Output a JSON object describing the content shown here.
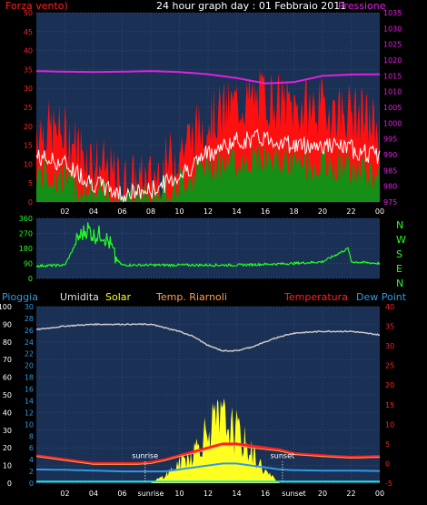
{
  "header": {
    "title": "24 hour graph day : 01 Febbraio 2011",
    "left_label": "Forza vento)",
    "right_label": "Pressione"
  },
  "middle": {
    "compass": [
      "N",
      "W",
      "S",
      "E",
      "N"
    ]
  },
  "lower_legend": {
    "rain": "Pioggia",
    "humidity": "Umidita",
    "solar": "Solar",
    "temp_riarnoli": "Temp. Riarnoli",
    "temperature": "Temperatura",
    "dew_point": "Dew Point"
  },
  "x_axis_ticks": [
    "02",
    "04",
    "06",
    "08",
    "10",
    "12",
    "14",
    "16",
    "18",
    "20",
    "22",
    "00"
  ],
  "x_axis_ticks_bottom": [
    "02",
    "04",
    "06",
    "sunrise",
    "10",
    "12",
    "14",
    "16",
    "sunset",
    "20",
    "22",
    "00"
  ],
  "annotations": {
    "sunrise": "sunrise",
    "sunset": "sunset"
  },
  "colors": {
    "background": "#000000",
    "plot": "#1a3055",
    "wind_gust": "#ff1010",
    "wind_avg": "#ffffff",
    "wind_low": "#158f15",
    "pressure": "#e020e0",
    "direction": "#20ff20",
    "humidity": "#c8c8c8",
    "solar": "#ffff20",
    "temperature": "#ff2020",
    "temp_riarnoli": "#ff9e50",
    "dew_point": "#2f9ae0"
  },
  "chart_data": [
    {
      "type": "line",
      "title": "24 hour graph day : 01 Febbraio 2011",
      "x": [
        0,
        2,
        4,
        6,
        8,
        10,
        12,
        14,
        16,
        18,
        20,
        22,
        24
      ],
      "xtick_labels": [
        "02",
        "04",
        "06",
        "08",
        "10",
        "12",
        "14",
        "16",
        "18",
        "20",
        "22",
        "00"
      ],
      "y_left_ticks": [
        0,
        5,
        10,
        15,
        20,
        25,
        30,
        35,
        40,
        45,
        50
      ],
      "y_right_ticks": [
        975,
        980,
        985,
        990,
        995,
        1000,
        1005,
        1010,
        1015,
        1020,
        1025,
        1030,
        1035
      ],
      "series": [
        {
          "name": "Forza vento)",
          "axis": "left",
          "values": [
            20,
            18,
            11,
            5,
            6,
            14,
            22,
            26,
            28,
            25,
            25,
            24,
            20
          ]
        },
        {
          "name": "Forza vento)",
          "axis": "left",
          "values": [
            12,
            10,
            5,
            2,
            3,
            7,
            13,
            16,
            17,
            15,
            15,
            14,
            12
          ]
        },
        {
          "name": "Forza vento)",
          "axis": "left",
          "values": [
            8,
            6,
            2,
            1,
            2,
            5,
            10,
            11,
            12,
            10,
            10,
            9,
            7
          ]
        },
        {
          "name": "Pressione",
          "axis": "right",
          "values": [
            1016.5,
            1016.3,
            1016.2,
            1016.3,
            1016.5,
            1016.2,
            1015.5,
            1014.3,
            1012.6,
            1013,
            1015,
            1015.4,
            1015.5
          ]
        }
      ],
      "ylim": [
        0,
        50
      ],
      "y2lim": [
        975,
        1035
      ],
      "grid": true
    },
    {
      "type": "scatter",
      "x": [
        0,
        2,
        3,
        3.6,
        4,
        4.6,
        5.2,
        5.5,
        6,
        8,
        10,
        12,
        14,
        16,
        18,
        20,
        21.8,
        22,
        24
      ],
      "y_ticks": [
        0,
        90,
        180,
        270,
        360
      ],
      "series": [
        {
          "values": [
            75,
            80,
            250,
            300,
            255,
            270,
            200,
            120,
            80,
            80,
            80,
            80,
            80,
            85,
            90,
            100,
            180,
            100,
            90
          ]
        }
      ],
      "ylim": [
        0,
        360
      ],
      "grid": true
    },
    {
      "type": "line",
      "x": [
        0,
        2,
        4,
        6,
        7,
        8,
        9,
        10,
        11,
        12,
        13,
        14,
        15,
        16,
        17,
        18,
        20,
        22,
        24
      ],
      "y_left_ticks_rain": [
        0,
        10,
        20,
        30,
        40,
        50,
        60,
        70,
        80,
        90,
        100
      ],
      "y_left_ticks_humidity": [
        0,
        2,
        4,
        6,
        8,
        10,
        12,
        14,
        16,
        18,
        20,
        22,
        24,
        26,
        28,
        30
      ],
      "y_right_ticks": [
        -5,
        0,
        5,
        10,
        15,
        20,
        25,
        30,
        35,
        40
      ],
      "series": [
        {
          "name": "Umidita",
          "values": [
            87,
            89,
            90,
            90,
            90,
            90,
            88,
            86,
            83,
            78,
            75,
            75,
            77,
            80,
            83,
            85,
            86,
            86,
            84
          ]
        },
        {
          "name": "Solar",
          "values": [
            0,
            0,
            0,
            0,
            0,
            0,
            2,
            5,
            8,
            14,
            16,
            13,
            8,
            3,
            0,
            0,
            0,
            0,
            0
          ]
        },
        {
          "name": "Temperatura",
          "values": [
            2,
            1,
            0,
            0,
            0,
            0.3,
            1,
            2,
            3,
            4,
            5,
            5,
            4.5,
            4,
            3.5,
            2.5,
            2,
            1.6,
            1.8
          ]
        },
        {
          "name": "Temp. Riarnoli",
          "values": [
            1.8,
            0.8,
            -0.2,
            -0.2,
            -0.2,
            0,
            0.8,
            1.8,
            2.6,
            3.6,
            4.6,
            4.6,
            4,
            3.6,
            3.2,
            2.3,
            1.8,
            1.4,
            1.6
          ]
        },
        {
          "name": "Dew Point",
          "values": [
            -1.5,
            -1.6,
            -1.8,
            -2,
            -2,
            -2,
            -2,
            -1.5,
            -1,
            -0.5,
            0,
            0,
            -0.5,
            -1,
            -1.5,
            -1.7,
            -1.8,
            -1.8,
            -1.9
          ]
        },
        {
          "name": "Pioggia",
          "values": [
            0,
            0,
            0,
            0,
            0,
            0,
            0,
            0,
            0,
            0,
            0,
            0,
            0,
            0,
            0,
            0,
            0,
            0,
            0
          ]
        }
      ],
      "ylim_rain": [
        0,
        100
      ],
      "ylim_humidity": [
        0,
        30
      ],
      "y2lim": [
        -5,
        40
      ],
      "grid": true
    }
  ]
}
